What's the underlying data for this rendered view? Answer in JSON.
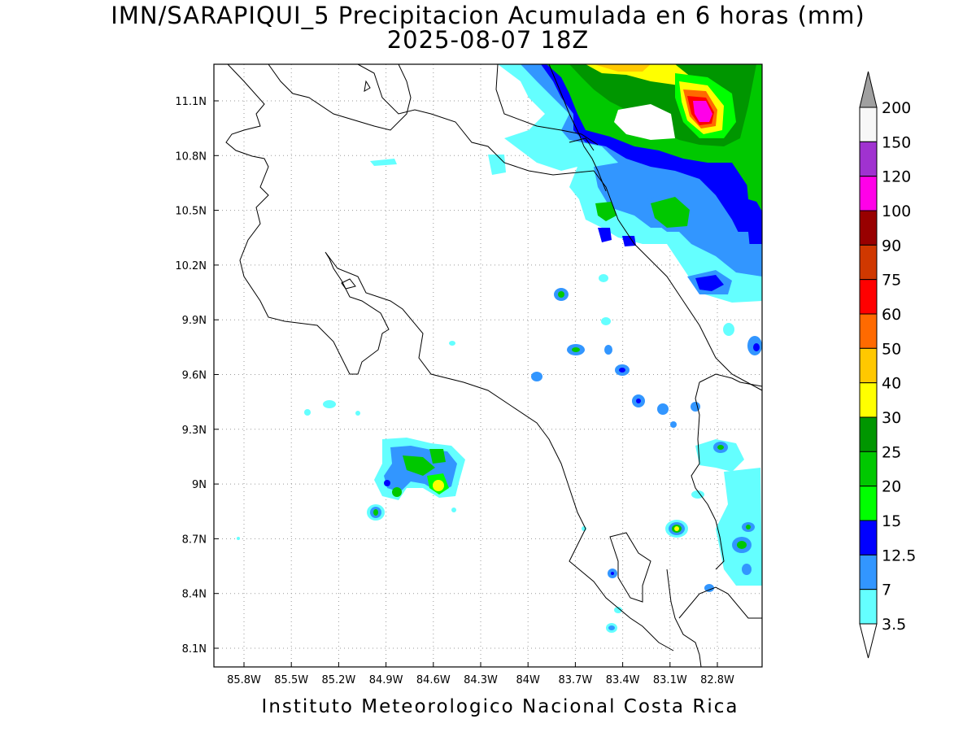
{
  "header": {
    "title_line1": "IMN/SARAPIQUI_5 Precipitacion Acumulada en 6 horas (mm)",
    "title_line2": "2025-08-07 18Z"
  },
  "footer": {
    "credit": "Instituto Meteorologico Nacional Costa Rica"
  },
  "map": {
    "lon_ticks": [
      "85.8W",
      "85.5W",
      "85.2W",
      "84.9W",
      "84.6W",
      "84.3W",
      "84W",
      "83.7W",
      "83.4W",
      "83.1W",
      "82.8W"
    ],
    "lat_ticks": [
      "11.1N",
      "10.8N",
      "10.5N",
      "10.2N",
      "9.9N",
      "9.6N",
      "9.3N",
      "9N",
      "8.7N",
      "8.4N",
      "8.1N"
    ],
    "coastline_color": "#000000",
    "grid": "dotted"
  },
  "colorbar": {
    "levels": [
      {
        "label": "200",
        "color": "#f7f7f7"
      },
      {
        "label": "150",
        "color": "#a032d0"
      },
      {
        "label": "120",
        "color": "#ff00e8"
      },
      {
        "label": "100",
        "color": "#980000"
      },
      {
        "label": "90",
        "color": "#d03800"
      },
      {
        "label": "75",
        "color": "#ff0000"
      },
      {
        "label": "60",
        "color": "#ff6a00"
      },
      {
        "label": "50",
        "color": "#ffc800"
      },
      {
        "label": "40",
        "color": "#ffff00"
      },
      {
        "label": "30",
        "color": "#009600"
      },
      {
        "label": "25",
        "color": "#00c800"
      },
      {
        "label": "20",
        "color": "#00ff00"
      },
      {
        "label": "15",
        "color": "#0000ff"
      },
      {
        "label": "12.5",
        "color": "#3296ff"
      },
      {
        "label": "7",
        "color": "#64ffff"
      },
      {
        "label": "3.5",
        "color": ""
      }
    ],
    "over_color": "#a0a0a0",
    "under_color": "#ffffff"
  }
}
